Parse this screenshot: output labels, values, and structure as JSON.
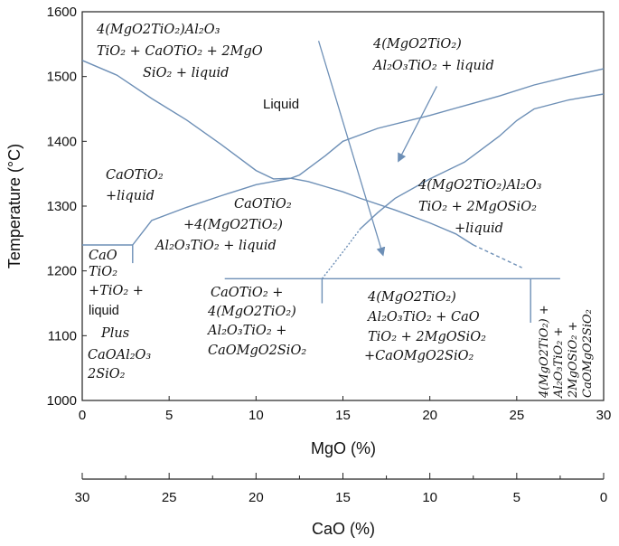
{
  "chart_data": {
    "type": "line",
    "xlabel": "MgO (%)",
    "ylabel": "Temperature (°C)",
    "secondary_xlabel": "CaO (%)",
    "xlim": [
      0,
      30
    ],
    "ylim": [
      1000,
      1600
    ],
    "x_ticks": [
      0,
      5,
      10,
      15,
      20,
      25,
      30
    ],
    "y_ticks": [
      1000,
      1100,
      1200,
      1300,
      1400,
      1500,
      1600
    ],
    "secondary_x_ticks": [
      30,
      25,
      20,
      15,
      10,
      5,
      0
    ],
    "series": [
      {
        "style": "solid",
        "x": [
          0,
          2,
          4,
          6,
          8,
          10,
          11,
          12,
          13,
          14,
          15,
          16,
          18,
          20,
          21.5,
          22.5
        ],
        "y": [
          1525,
          1502,
          1466,
          1433,
          1395,
          1355,
          1342,
          1343,
          1338,
          1330,
          1322,
          1312,
          1294,
          1274,
          1257,
          1240
        ]
      },
      {
        "style": "dashed",
        "x": [
          22.5,
          25.3
        ],
        "y": [
          1240,
          1205
        ]
      },
      {
        "style": "solid",
        "x": [
          2.9,
          4,
          6,
          8,
          10,
          12,
          12.5,
          13,
          14,
          15,
          17,
          20,
          22,
          24,
          26,
          28,
          30
        ],
        "y": [
          1240,
          1278,
          1298,
          1316,
          1333,
          1343,
          1348,
          1358,
          1378,
          1400,
          1420,
          1440,
          1455,
          1470,
          1487,
          1500,
          1512
        ]
      },
      {
        "style": "solid",
        "x": [
          16,
          17,
          18,
          20,
          22,
          23,
          24,
          25,
          26,
          28,
          30
        ],
        "y": [
          1265,
          1290,
          1312,
          1342,
          1368,
          1388,
          1408,
          1432,
          1450,
          1464,
          1473
        ]
      },
      {
        "style": "dotted",
        "x": [
          13.8,
          14.5,
          15.3,
          16
        ],
        "y": [
          1188,
          1212,
          1240,
          1265
        ]
      },
      {
        "style": "solid",
        "x": [
          0,
          2.9
        ],
        "y": [
          1240,
          1240
        ]
      },
      {
        "style": "solid",
        "x": [
          2.9,
          2.9
        ],
        "y": [
          1240,
          1212
        ]
      },
      {
        "style": "solid",
        "x": [
          8.2,
          27.5
        ],
        "y": [
          1188,
          1188
        ]
      },
      {
        "style": "solid",
        "x": [
          13.8,
          13.8
        ],
        "y": [
          1188,
          1150
        ]
      },
      {
        "style": "solid",
        "x": [
          25.8,
          25.8
        ],
        "y": [
          1188,
          1120
        ]
      }
    ],
    "arrows": [
      {
        "from": [
          13.6,
          1555
        ],
        "to": [
          17.3,
          1225
        ]
      },
      {
        "from": [
          20.4,
          1485
        ],
        "to": [
          18.2,
          1370
        ]
      }
    ],
    "regions": [
      {
        "lines": [
          "4(MgO2TiO₂)Al₂O₃",
          "TiO₂ + CaOTiO₂ + 2MgO",
          "SiO₂ + liquid"
        ]
      },
      {
        "lines": [
          "4(MgO2TiO₂)",
          "Al₂O₃TiO₂ + liquid"
        ]
      },
      {
        "lines": [
          "Liquid"
        ]
      },
      {
        "lines": [
          "CaOTiO₂",
          "+liquid"
        ]
      },
      {
        "lines": [
          "CaOTiO₂",
          "+4(MgO2TiO₂)",
          "Al₂O₃TiO₂ + liquid"
        ]
      },
      {
        "lines": [
          "4(MgO2TiO₂)Al₂O₃",
          "TiO₂ + 2MgOSiO₂",
          "+liquid"
        ]
      },
      {
        "lines": [
          "CaO",
          "TiO₂",
          "+TiO₂ +",
          "liquid",
          "Plus",
          "CaOAl₂O₃",
          "2SiO₂"
        ]
      },
      {
        "lines": [
          "CaOTiO₂ +",
          "4(MgO2TiO₂)",
          "Al₂O₃TiO₂ +",
          "CaOMgO2SiO₂"
        ]
      },
      {
        "lines": [
          "4(MgO2TiO₂)",
          "Al₂O₃TiO₂ + CaO",
          "TiO₂ + 2MgOSiO₂",
          "+CaOMgO2SiO₂"
        ]
      },
      {
        "lines": [
          "4(MgO2TiO₂) +",
          "Al₂O₃TiO₂ +",
          "2MgOSiO₂ +",
          "CaOMgO2SiO₂"
        ]
      }
    ]
  }
}
